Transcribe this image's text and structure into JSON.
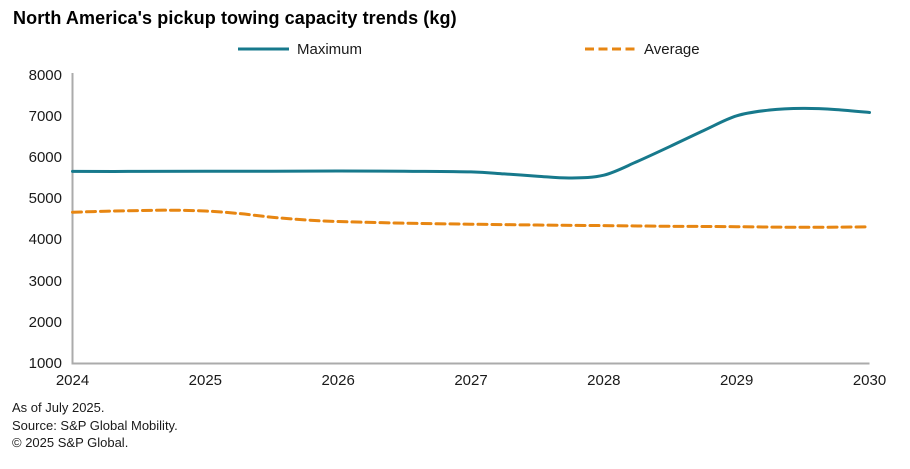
{
  "title": "North America's pickup towing capacity trends (kg)",
  "footer": {
    "as_of": "As of July 2025.",
    "source": "Source: S&P Global Mobility.",
    "copyright": "© 2025 S&P Global."
  },
  "colors": {
    "maximum_line": "#17798c",
    "average_line": "#e78612",
    "axis": "#ababab",
    "text": "#1a1a1a"
  },
  "chart_data": {
    "type": "line",
    "title": "North America's pickup towing capacity trends (kg)",
    "xlabel": "",
    "ylabel": "",
    "xlim": [
      2024,
      2030
    ],
    "ylim": [
      1000,
      8000
    ],
    "x_ticks": [
      2024,
      2025,
      2026,
      2027,
      2028,
      2029,
      2030
    ],
    "y_ticks": [
      8000,
      7000,
      6000,
      5000,
      4000,
      3000,
      2000,
      1000
    ],
    "grid": false,
    "legend_position": "top",
    "series": [
      {
        "name": "Maximum",
        "color": "#17798c",
        "style": "solid",
        "points": [
          [
            2024.0,
            5660
          ],
          [
            2024.5,
            5660
          ],
          [
            2025.0,
            5665
          ],
          [
            2025.5,
            5665
          ],
          [
            2026.0,
            5670
          ],
          [
            2026.5,
            5665
          ],
          [
            2027.0,
            5650
          ],
          [
            2027.25,
            5600
          ],
          [
            2027.5,
            5545
          ],
          [
            2027.75,
            5500
          ],
          [
            2028.0,
            5570
          ],
          [
            2028.25,
            5900
          ],
          [
            2028.5,
            6270
          ],
          [
            2028.75,
            6650
          ],
          [
            2029.0,
            7010
          ],
          [
            2029.25,
            7150
          ],
          [
            2029.5,
            7190
          ],
          [
            2029.75,
            7160
          ],
          [
            2030.0,
            7090
          ]
        ]
      },
      {
        "name": "Average",
        "color": "#e78612",
        "style": "dashed",
        "points": [
          [
            2024.0,
            4670
          ],
          [
            2024.25,
            4695
          ],
          [
            2024.5,
            4710
          ],
          [
            2024.75,
            4720
          ],
          [
            2025.0,
            4700
          ],
          [
            2025.25,
            4640
          ],
          [
            2025.5,
            4550
          ],
          [
            2025.75,
            4485
          ],
          [
            2026.0,
            4445
          ],
          [
            2026.5,
            4405
          ],
          [
            2027.0,
            4380
          ],
          [
            2027.5,
            4360
          ],
          [
            2028.0,
            4345
          ],
          [
            2028.5,
            4330
          ],
          [
            2029.0,
            4320
          ],
          [
            2029.5,
            4305
          ],
          [
            2030.0,
            4315
          ]
        ]
      }
    ]
  }
}
